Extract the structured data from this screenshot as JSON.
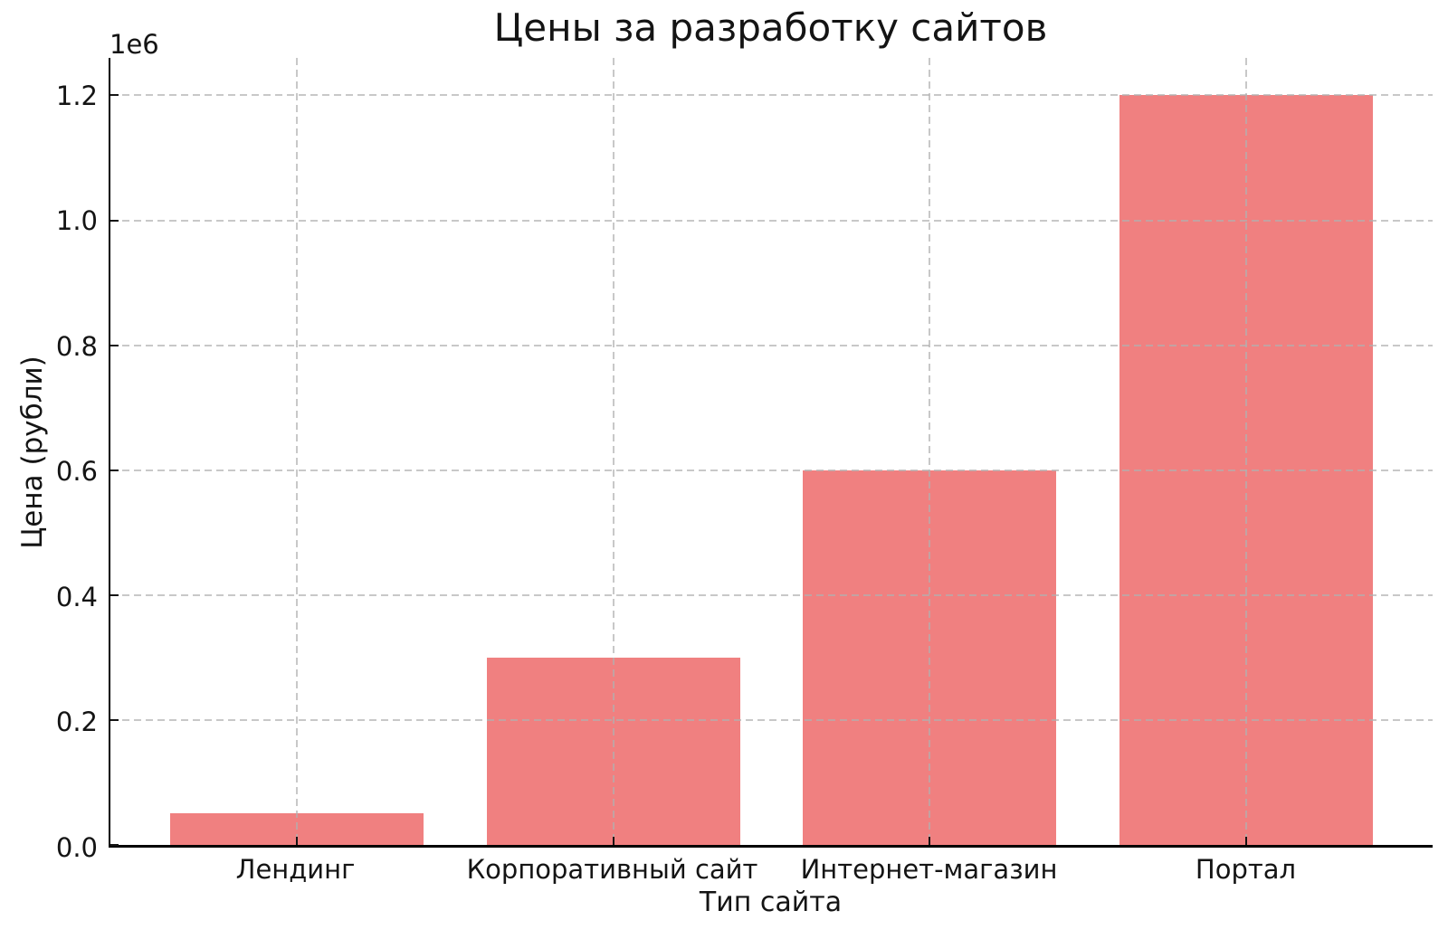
{
  "chart_data": {
    "type": "bar",
    "title": "Цены за разработку сайтов",
    "xlabel": "Тип сайта",
    "ylabel": "Цена (рубли)",
    "offset_label": "1e6",
    "categories": [
      "Лендинг",
      "Корпоративный сайт",
      "Интернет-магазин",
      "Портал"
    ],
    "values": [
      50000,
      300000,
      600000,
      1200000
    ],
    "bar_color": "#F08080",
    "bar_width": 0.8,
    "ylim": [
      0,
      1260000
    ],
    "y_ticks": [
      0,
      200000,
      400000,
      600000,
      800000,
      1000000,
      1200000
    ],
    "y_tick_labels": [
      "0.0",
      "0.2",
      "0.4",
      "0.6",
      "0.8",
      "1.0",
      "1.2"
    ],
    "grid": {
      "visible": true,
      "style": "dashed",
      "color": "#b0b0b0",
      "alpha": 0.7
    },
    "spine_color": "#000000",
    "background": "#ffffff",
    "legend": "none"
  }
}
